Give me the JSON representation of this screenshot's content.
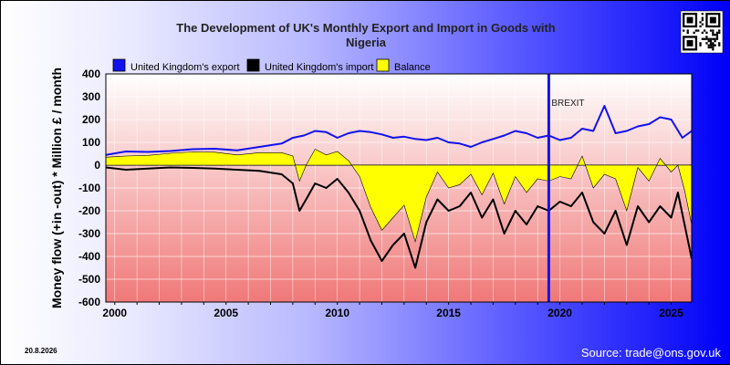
{
  "chart_data": {
    "type": "area",
    "title_lines": [
      "The Development of UK's Monthly Export and Import in Goods with",
      "Nigeria"
    ],
    "ylabel": "Money flow (+in -out) * Million £ / month",
    "ylim": [
      -600,
      400
    ],
    "yticks": [
      "400",
      "300",
      "200",
      "100",
      "0",
      "-100",
      "-200",
      "-300",
      "-400",
      "-500",
      "-600"
    ],
    "xlim": [
      1999.6,
      2025.92
    ],
    "xticks": [
      {
        "label": "2000",
        "value": 2000.0
      },
      {
        "label": "2005",
        "value": 2005.0
      },
      {
        "label": "2010",
        "value": 2010.0
      },
      {
        "label": "2015",
        "value": 2015.0
      },
      {
        "label": "2020",
        "value": 2020.0
      },
      {
        "label": "2025",
        "value": 2025.0
      }
    ],
    "legend_placement": "top-left",
    "grid": true,
    "annotation": {
      "label": "BREXIT",
      "x": 2019.5
    },
    "series": [
      {
        "name": "United Kingdom's export",
        "color": "#1111ee",
        "x": [
          1999.6,
          2000.5,
          2001.5,
          2002.5,
          2003.5,
          2004.5,
          2005.5,
          2006.5,
          2007.5,
          2008.0,
          2008.5,
          2009.0,
          2009.5,
          2010.0,
          2010.5,
          2011.0,
          2011.5,
          2012.0,
          2012.5,
          2013.0,
          2013.5,
          2014.0,
          2014.5,
          2015.0,
          2015.5,
          2016.0,
          2016.5,
          2017.0,
          2017.5,
          2018.0,
          2018.5,
          2019.0,
          2019.5,
          2020.0,
          2020.5,
          2021.0,
          2021.5,
          2022.0,
          2022.5,
          2023.0,
          2023.5,
          2024.0,
          2024.5,
          2025.0,
          2025.5,
          2025.92
        ],
        "values": [
          45,
          60,
          58,
          62,
          70,
          72,
          65,
          80,
          95,
          120,
          130,
          150,
          145,
          120,
          140,
          150,
          145,
          135,
          120,
          125,
          115,
          110,
          120,
          100,
          95,
          80,
          100,
          115,
          130,
          150,
          140,
          120,
          130,
          110,
          120,
          160,
          150,
          260,
          140,
          150,
          170,
          180,
          210,
          200,
          120,
          150
        ]
      },
      {
        "name": "United Kingdom's import",
        "color": "#000000",
        "x": [
          1999.6,
          2000.5,
          2001.5,
          2002.5,
          2003.5,
          2004.5,
          2005.5,
          2006.5,
          2007.5,
          2008.0,
          2008.3,
          2008.6,
          2009.0,
          2009.5,
          2010.0,
          2010.5,
          2011.0,
          2011.5,
          2012.0,
          2012.5,
          2013.0,
          2013.5,
          2014.0,
          2014.5,
          2015.0,
          2015.5,
          2016.0,
          2016.5,
          2017.0,
          2017.5,
          2018.0,
          2018.5,
          2019.0,
          2019.5,
          2020.0,
          2020.5,
          2021.0,
          2021.5,
          2022.0,
          2022.5,
          2023.0,
          2023.5,
          2024.0,
          2024.5,
          2025.0,
          2025.3,
          2025.6,
          2025.92
        ],
        "values": [
          -10,
          -20,
          -15,
          -10,
          -12,
          -15,
          -20,
          -25,
          -40,
          -80,
          -200,
          -150,
          -80,
          -100,
          -60,
          -120,
          -200,
          -330,
          -420,
          -350,
          -300,
          -450,
          -250,
          -150,
          -200,
          -180,
          -120,
          -230,
          -150,
          -300,
          -200,
          -260,
          -180,
          -200,
          -160,
          -180,
          -120,
          -250,
          -300,
          -200,
          -350,
          -180,
          -250,
          -180,
          -230,
          -120,
          -260,
          -410
        ]
      },
      {
        "name": "Balance",
        "color": "#ffff00",
        "x": [
          1999.6,
          2000.5,
          2001.5,
          2002.5,
          2003.5,
          2004.5,
          2005.5,
          2006.5,
          2007.5,
          2008.0,
          2008.3,
          2008.6,
          2009.0,
          2009.5,
          2010.0,
          2010.5,
          2011.0,
          2011.5,
          2012.0,
          2012.5,
          2013.0,
          2013.5,
          2014.0,
          2014.5,
          2015.0,
          2015.5,
          2016.0,
          2016.5,
          2017.0,
          2017.5,
          2018.0,
          2018.5,
          2019.0,
          2019.5,
          2020.0,
          2020.5,
          2021.0,
          2021.5,
          2022.0,
          2022.5,
          2023.0,
          2023.5,
          2024.0,
          2024.5,
          2025.0,
          2025.3,
          2025.6,
          2025.92
        ],
        "values": [
          35,
          40,
          43,
          52,
          58,
          57,
          45,
          55,
          55,
          40,
          -70,
          0,
          70,
          45,
          60,
          20,
          -50,
          -185,
          -285,
          -230,
          -175,
          -335,
          -140,
          -30,
          -100,
          -85,
          -40,
          -130,
          -35,
          -170,
          -50,
          -120,
          -60,
          -70,
          -50,
          -60,
          40,
          -100,
          -40,
          -60,
          -200,
          -10,
          -70,
          30,
          -30,
          0,
          -110,
          -260
        ]
      }
    ]
  },
  "date_stamp": "20.8.2026",
  "source": "Source: trade@ons.gov.uk",
  "qr_icon": "qr-code-icon",
  "plot_bg_colors": [
    "#ffffff",
    "#f07878"
  ]
}
